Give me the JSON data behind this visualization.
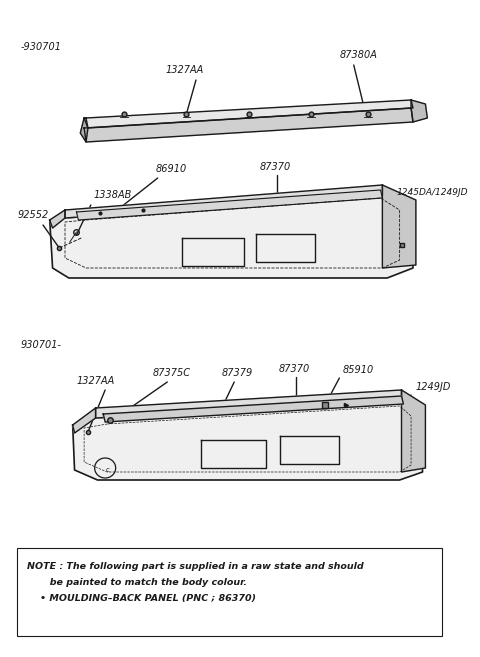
{
  "bg_color": "#ffffff",
  "line_color": "#1a1a1a",
  "section1_label": "-930701",
  "section2_label": "930701-",
  "note_line1": "NOTE : The following part is supplied in a raw state and should",
  "note_line2": "       be painted to match the body colour.",
  "note_line3": "    • MOULDING–BACK PANEL (PNC ; 86370)",
  "fs_label": 7.0,
  "fs_note": 6.8
}
